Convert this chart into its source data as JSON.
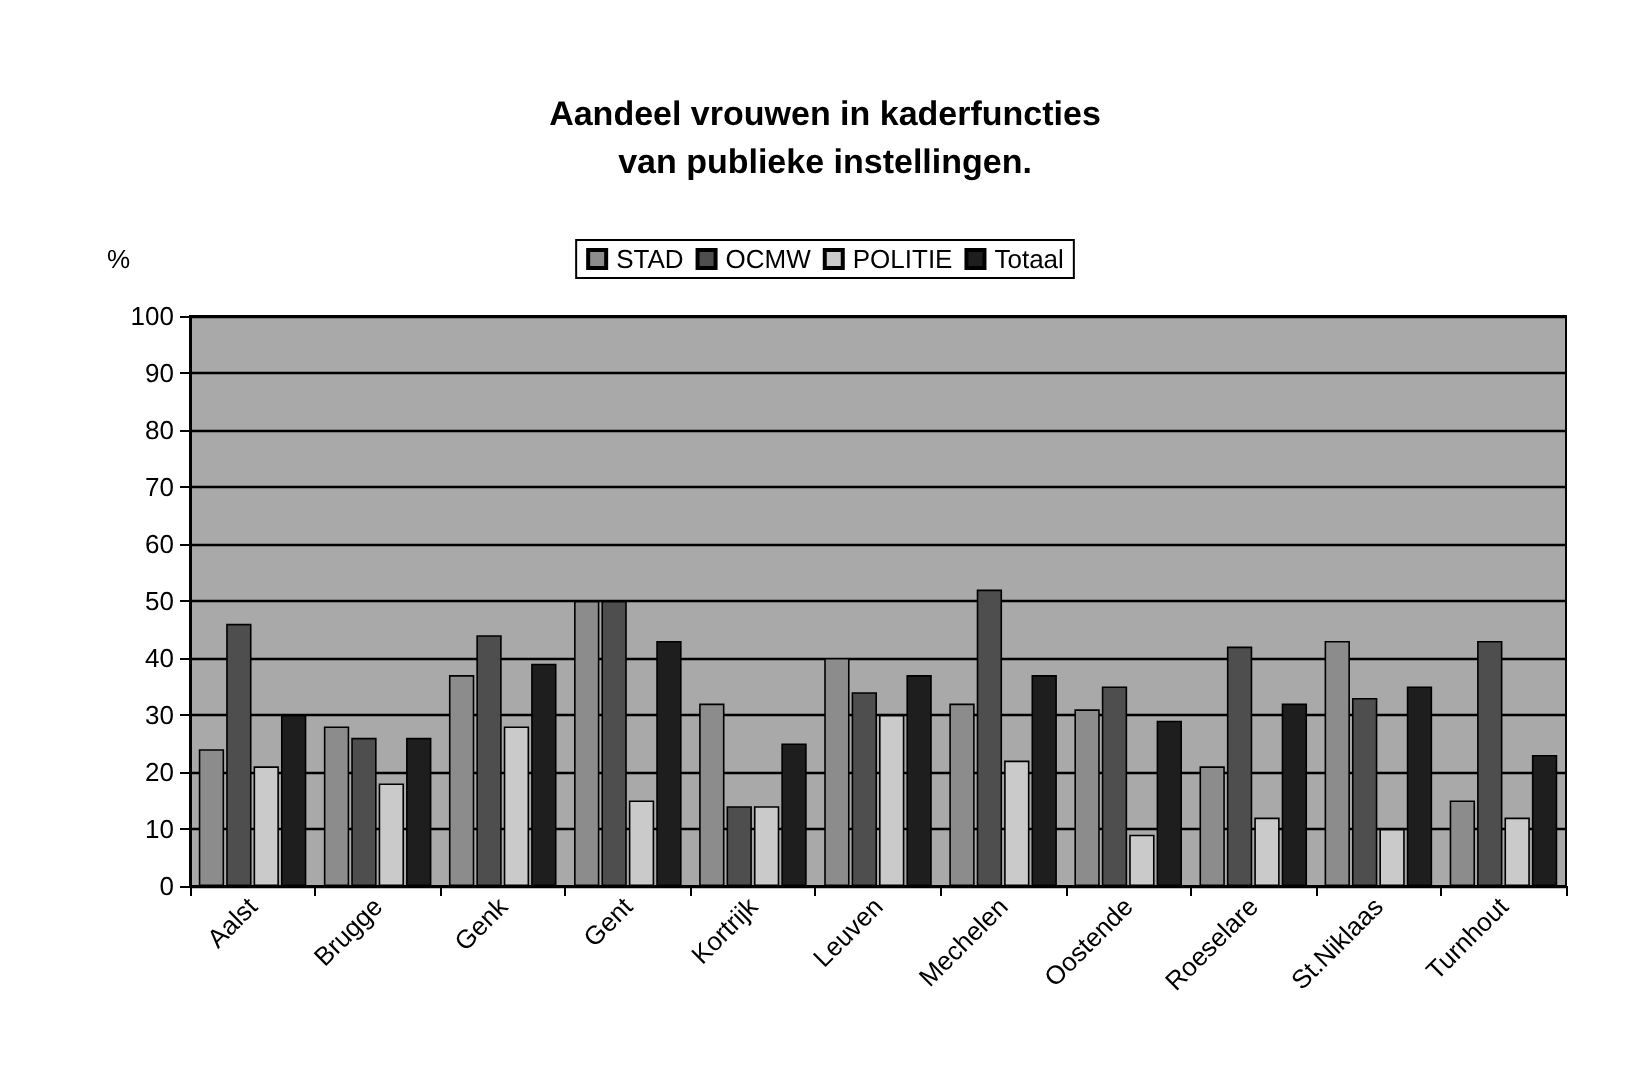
{
  "chart_data": {
    "type": "bar",
    "title": "Aandeel vrouwen in kaderfuncties\nvan publieke instellingen.",
    "ylabel": "%",
    "categories": [
      "Aalst",
      "Brugge",
      "Genk",
      "Gent",
      "Kortrijk",
      "Leuven",
      "Mechelen",
      "Oostende",
      "Roeselare",
      "St.Niklaas",
      "Turnhout"
    ],
    "series": [
      {
        "name": "STAD",
        "color": "#8c8c8c",
        "values": [
          24,
          28,
          37,
          50,
          32,
          40,
          32,
          31,
          21,
          43,
          15
        ]
      },
      {
        "name": "OCMW",
        "color": "#4e4e4e",
        "values": [
          46,
          26,
          44,
          50,
          14,
          34,
          52,
          35,
          42,
          33,
          43
        ]
      },
      {
        "name": "POLITIE",
        "color": "#cacaca",
        "values": [
          21,
          18,
          28,
          15,
          14,
          30,
          22,
          9,
          12,
          10,
          12
        ]
      },
      {
        "name": "Totaal",
        "color": "#1e1e1e",
        "values": [
          30,
          26,
          39,
          43,
          25,
          37,
          37,
          29,
          32,
          35,
          23
        ]
      }
    ],
    "ylim": [
      0,
      100
    ],
    "yticks": [
      0,
      10,
      20,
      30,
      40,
      50,
      60,
      70,
      80,
      90,
      100
    ],
    "grid": "y",
    "legend": "top"
  }
}
